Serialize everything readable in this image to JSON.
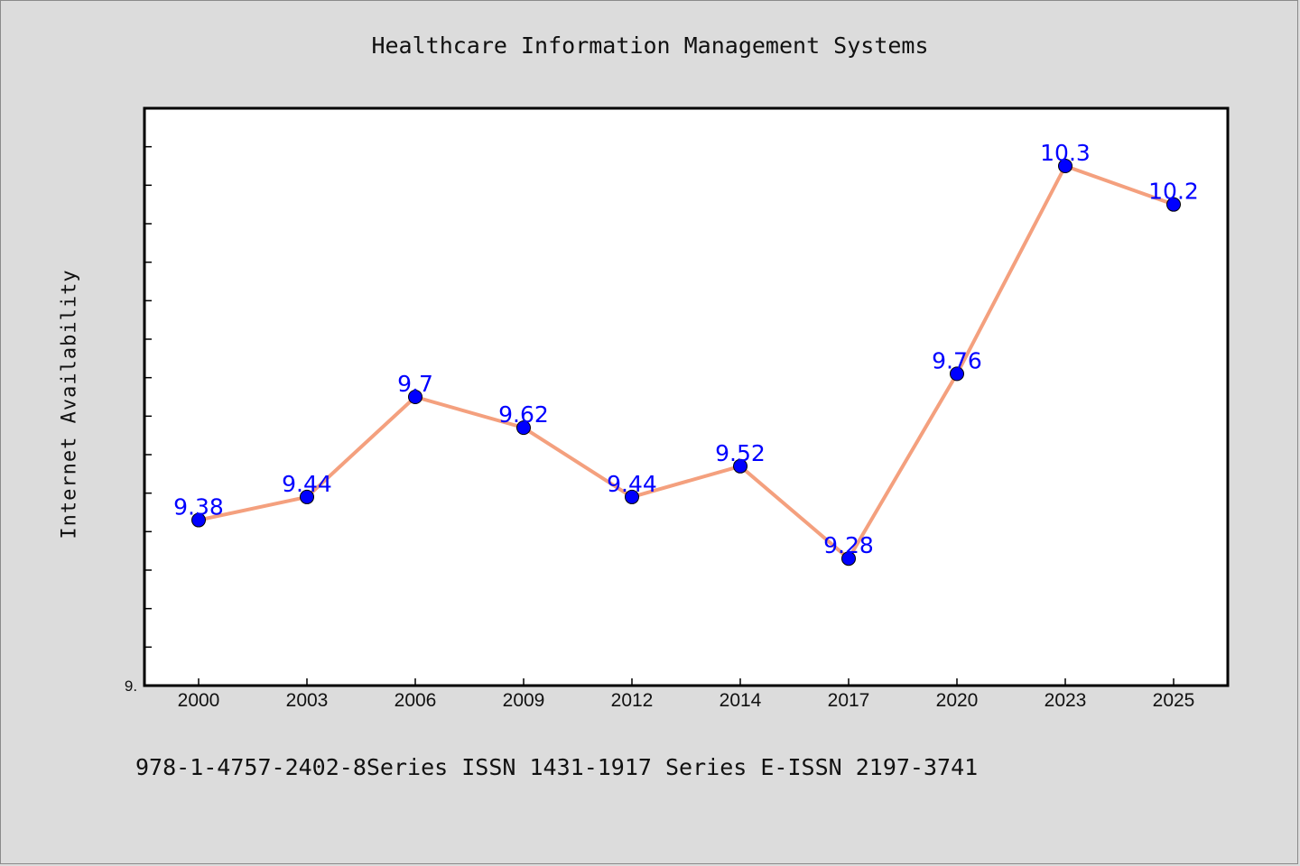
{
  "chart_data": {
    "type": "line",
    "title": "Healthcare Information Management Systems",
    "xlabel": "",
    "ylabel": "Internet Availability",
    "categories": [
      "2000",
      "2003",
      "2006",
      "2009",
      "2012",
      "2014",
      "2017",
      "2020",
      "2023",
      "2025"
    ],
    "series": [
      {
        "values": [
          9.38,
          9.44,
          9.7,
          9.62,
          9.44,
          9.52,
          9.28,
          9.76,
          10.3,
          10.2
        ],
        "value_labels": [
          "9.38",
          "9.44",
          "9.7",
          "9.62",
          "9.44",
          "9.52",
          "9.28",
          "9.76",
          "10.3",
          "10.2"
        ],
        "line_color": "#f4a07e",
        "marker_color": "#0000ff"
      }
    ],
    "ylim": [
      8.95,
      10.45
    ],
    "y_tick_label": "9.",
    "grid": false,
    "legend": "none"
  },
  "footer_note": "978-1-4757-2402-8Series ISSN 1431-1917 Series E-ISSN 2197-3741",
  "colors": {
    "background": "#dcdcdc",
    "plot_background": "#ffffff",
    "line": "#f4a07e",
    "marker": "#0000ff",
    "data_label": "#0000ff"
  }
}
